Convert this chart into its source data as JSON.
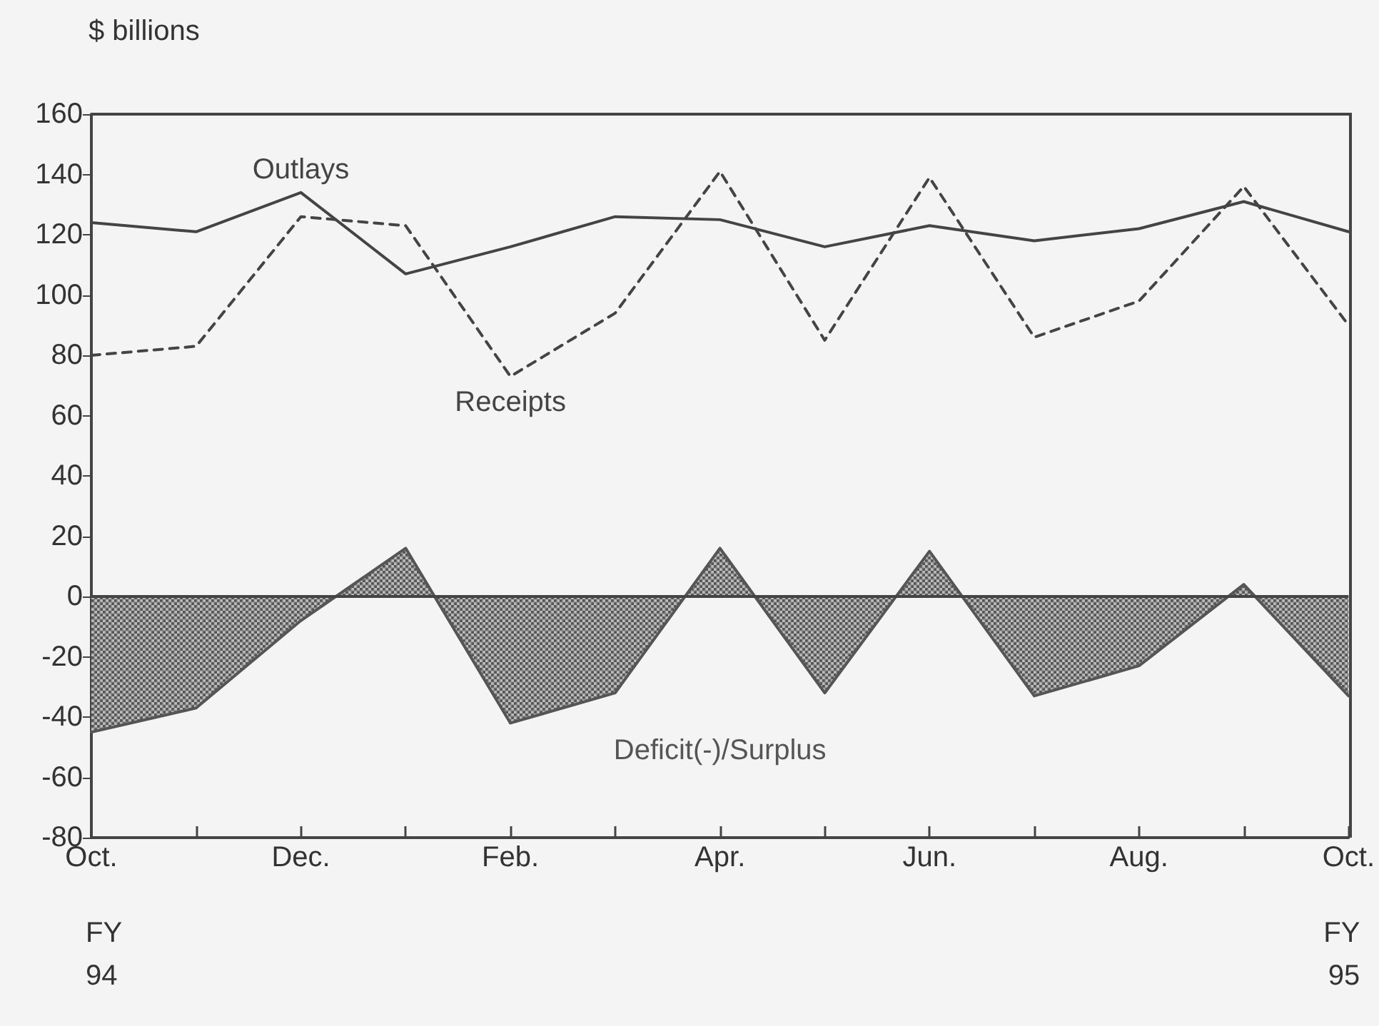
{
  "chart_data": {
    "type": "line",
    "ylabel": "$ billions",
    "categories": [
      "Oct.",
      null,
      "Dec.",
      null,
      "Feb.",
      null,
      "Apr.",
      null,
      "Jun.",
      null,
      "Aug.",
      null,
      "Oct."
    ],
    "series": [
      {
        "name": "Outlays",
        "color": "#444444",
        "line_style": "solid",
        "values": [
          124,
          121,
          134,
          107,
          116,
          126,
          125,
          116,
          123,
          118,
          122,
          131,
          121
        ]
      },
      {
        "name": "Receipts",
        "color": "#444444",
        "line_style": "dashed",
        "values": [
          80,
          83,
          126,
          123,
          73,
          94,
          141,
          85,
          139,
          86,
          98,
          136,
          90
        ]
      },
      {
        "name": "Deficit(-)/Surplus",
        "type": "area",
        "color": "#555555",
        "line_style": "solid",
        "values": [
          -45,
          -37,
          -8,
          16,
          -42,
          -32,
          16,
          -32,
          15,
          -33,
          -23,
          4,
          -33
        ]
      }
    ],
    "ylim": [
      -80,
      160
    ],
    "yticks": [
      -80,
      -60,
      -40,
      -20,
      0,
      20,
      40,
      60,
      80,
      100,
      120,
      140,
      160
    ],
    "grid": false,
    "ref_lines": [
      {
        "axis": "y",
        "value": 0,
        "color": "#444444"
      }
    ],
    "legend": false,
    "marker": "none",
    "annotations": [
      "FY\n94",
      "FY\n95"
    ]
  }
}
